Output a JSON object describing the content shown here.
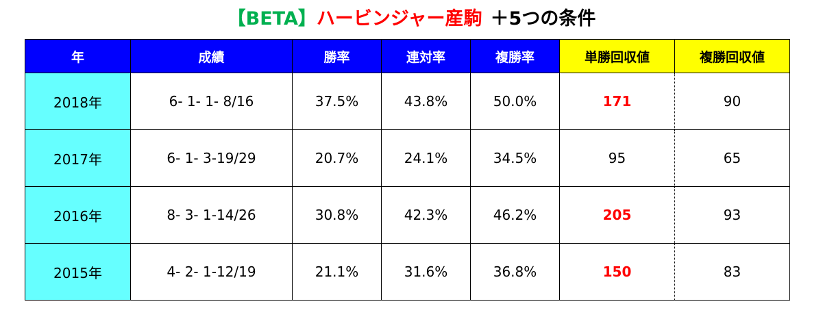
{
  "title": {
    "beta": "【BETA】",
    "name": "ハービンジャー産駒",
    "rest": "＋5つの条件"
  },
  "colors": {
    "header_blue": "#0000ff",
    "header_yellow": "#ffff00",
    "year_cell": "#66ffff",
    "title_green": "#00b050",
    "highlight_red": "#ff0000"
  },
  "table": {
    "headers": [
      "年",
      "成績",
      "勝率",
      "連対率",
      "複勝率",
      "単勝回収値",
      "複勝回収値"
    ],
    "rows": [
      {
        "year": "2018年",
        "record": "6- 1- 1- 8/16",
        "win_rate": "37.5%",
        "quinella_rate": "43.8%",
        "show_rate": "50.0%",
        "win_return": "171",
        "win_return_highlight": true,
        "show_return": "90"
      },
      {
        "year": "2017年",
        "record": "6- 1- 3-19/29",
        "win_rate": "20.7%",
        "quinella_rate": "24.1%",
        "show_rate": "34.5%",
        "win_return": "95",
        "win_return_highlight": false,
        "show_return": "65"
      },
      {
        "year": "2016年",
        "record": "8- 3- 1-14/26",
        "win_rate": "30.8%",
        "quinella_rate": "42.3%",
        "show_rate": "46.2%",
        "win_return": "205",
        "win_return_highlight": true,
        "show_return": "93"
      },
      {
        "year": "2015年",
        "record": "4- 2- 1-12/19",
        "win_rate": "21.1%",
        "quinella_rate": "31.6%",
        "show_rate": "36.8%",
        "win_return": "150",
        "win_return_highlight": true,
        "show_return": "83"
      }
    ]
  }
}
